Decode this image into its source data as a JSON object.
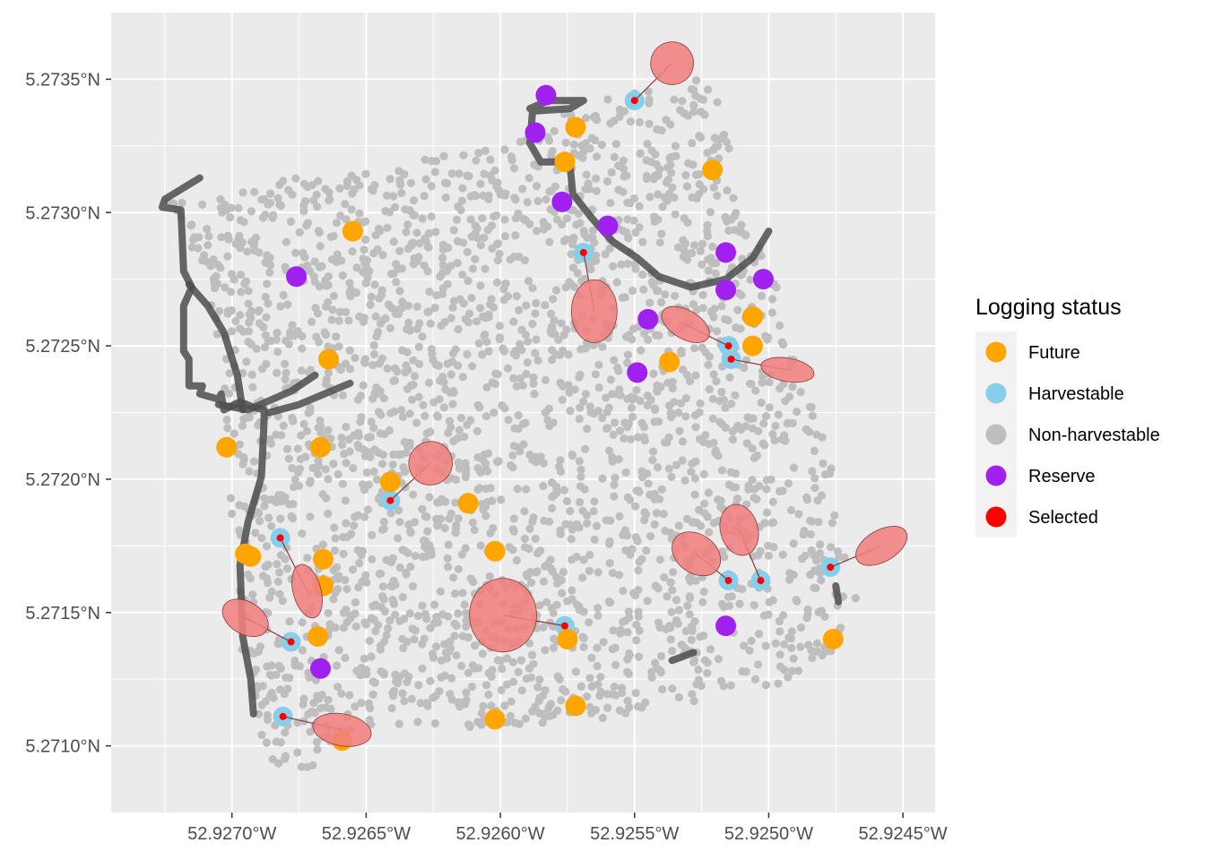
{
  "chart_data": {
    "type": "scatter",
    "title": "",
    "xlabel": "",
    "ylabel": "",
    "x_axis": {
      "range": [
        -52.92745,
        -52.92438
      ],
      "ticks": [
        -52.927,
        -52.9265,
        -52.926,
        -52.9255,
        -52.925,
        -52.9245
      ],
      "tick_labels": [
        "52.9270°W",
        "52.9265°W",
        "52.9260°W",
        "52.9255°W",
        "52.9250°W",
        "52.9245°W"
      ]
    },
    "y_axis": {
      "range": [
        5.27075,
        5.27375
      ],
      "ticks": [
        5.271,
        5.2715,
        5.272,
        5.2725,
        5.273,
        5.2735
      ],
      "tick_labels": [
        "5.2710°N",
        "5.2715°N",
        "5.2720°N",
        "5.2725°N",
        "5.2730°N",
        "5.2735°N"
      ]
    },
    "grid": true,
    "legend": {
      "title": "Logging status",
      "placement": "right",
      "entries": [
        {
          "label": "Future",
          "color": "#FFA500"
        },
        {
          "label": "Harvestable",
          "color": "#87CEEB"
        },
        {
          "label": "Non-harvestable",
          "color": "#BEBEBE"
        },
        {
          "label": "Reserve",
          "color": "#A020F0"
        },
        {
          "label": "Selected",
          "color": "#FF0000"
        }
      ]
    },
    "colors": {
      "panel": "#EBEBEB",
      "grid": "#FFFFFF",
      "road": "#4D4D4D",
      "felling_zone": "#F08080",
      "felling_zone_edge": "#8B3A3A"
    },
    "non_harvestable_region": [
      [
        -52.92725,
        5.27306
      ],
      [
        -52.92596,
        5.27325
      ],
      [
        -52.92575,
        5.27338
      ],
      [
        -52.92528,
        5.27352
      ],
      [
        -52.92517,
        5.2734
      ],
      [
        -52.92512,
        5.27306
      ],
      [
        -52.92497,
        5.27272
      ],
      [
        -52.92495,
        5.27252
      ],
      [
        -52.92483,
        5.27231
      ],
      [
        -52.92477,
        5.2721
      ],
      [
        -52.92475,
        5.27186
      ],
      [
        -52.92469,
        5.27168
      ],
      [
        -52.92466,
        5.27154
      ],
      [
        -52.92478,
        5.27133
      ],
      [
        -52.92497,
        5.27123
      ],
      [
        -52.92535,
        5.27115
      ],
      [
        -52.92575,
        5.27108
      ],
      [
        -52.92613,
        5.27106
      ],
      [
        -52.92652,
        5.27103
      ],
      [
        -52.92666,
        5.27091
      ],
      [
        -52.92685,
        5.27092
      ],
      [
        -52.92697,
        5.27125
      ],
      [
        -52.92698,
        5.27162
      ],
      [
        -52.92702,
        5.27205
      ],
      [
        -52.92703,
        5.27243
      ],
      [
        -52.9271,
        5.27275
      ]
    ],
    "future": [
      [
        -52.92655,
        5.27293
      ],
      [
        -52.92572,
        5.27332
      ],
      [
        -52.92576,
        5.27319
      ],
      [
        -52.92521,
        5.27316
      ],
      [
        -52.92664,
        5.27245
      ],
      [
        -52.92702,
        5.27212
      ],
      [
        -52.92667,
        5.27212
      ],
      [
        -52.92641,
        5.27199
      ],
      [
        -52.92612,
        5.27191
      ],
      [
        -52.92602,
        5.27173
      ],
      [
        -52.92693,
        5.27171
      ],
      [
        -52.92666,
        5.2717
      ],
      [
        -52.92666,
        5.2716
      ],
      [
        -52.92668,
        5.27141
      ],
      [
        -52.92659,
        5.27102
      ],
      [
        -52.92575,
        5.2714
      ],
      [
        -52.92602,
        5.2711
      ],
      [
        -52.92572,
        5.27115
      ],
      [
        -52.92506,
        5.27261
      ],
      [
        -52.92506,
        5.2725
      ],
      [
        -52.92537,
        5.27244
      ],
      [
        -52.92476,
        5.2714
      ],
      [
        -52.92695,
        5.27172
      ]
    ],
    "reserve": [
      [
        -52.92676,
        5.27276
      ],
      [
        -52.92583,
        5.27344
      ],
      [
        -52.92587,
        5.2733
      ],
      [
        -52.92577,
        5.27304
      ],
      [
        -52.9256,
        5.27295
      ],
      [
        -52.92516,
        5.27285
      ],
      [
        -52.92516,
        5.27271
      ],
      [
        -52.92502,
        5.27275
      ],
      [
        -52.92545,
        5.2726
      ],
      [
        -52.92549,
        5.2724
      ],
      [
        -52.92516,
        5.27145
      ],
      [
        -52.92667,
        5.27129
      ]
    ],
    "selected": [
      [
        -52.9255,
        5.27342
      ],
      [
        -52.92569,
        5.27285
      ],
      [
        -52.92515,
        5.2725
      ],
      [
        -52.92514,
        5.27245
      ],
      [
        -52.92641,
        5.27192
      ],
      [
        -52.92682,
        5.27178
      ],
      [
        -52.92678,
        5.27139
      ],
      [
        -52.92681,
        5.27111
      ],
      [
        -52.92576,
        5.27145
      ],
      [
        -52.92515,
        5.27162
      ],
      [
        -52.92503,
        5.27162
      ],
      [
        -52.92477,
        5.27167
      ]
    ],
    "felling_zones": [
      {
        "tree": 0,
        "cx": -52.92536,
        "cy": 5.27356,
        "rx": 8e-05,
        "ry": 8e-05,
        "angle": -30
      },
      {
        "tree": 1,
        "cx": -52.92565,
        "cy": 5.27263,
        "rx": 8.5e-05,
        "ry": 0.000118,
        "angle": 0
      },
      {
        "tree": 2,
        "cx": -52.92531,
        "cy": 5.27258,
        "rx": 9.8e-05,
        "ry": 5.4e-05,
        "angle": 30
      },
      {
        "tree": 3,
        "cx": -52.92493,
        "cy": 5.27241,
        "rx": 0.0001,
        "ry": 4.4e-05,
        "angle": 10
      },
      {
        "tree": 4,
        "cx": -52.92626,
        "cy": 5.27206,
        "rx": 8.2e-05,
        "ry": 8.1e-05,
        "angle": -45
      },
      {
        "tree": 5,
        "cx": -52.92672,
        "cy": 5.27158,
        "rx": 5.2e-05,
        "ry": 0.000103,
        "angle": -15
      },
      {
        "tree": 6,
        "cx": -52.92695,
        "cy": 5.27148,
        "rx": 9.2e-05,
        "ry": 6.1e-05,
        "angle": 30
      },
      {
        "tree": 7,
        "cx": -52.92659,
        "cy": 5.27106,
        "rx": 0.00011,
        "ry": 6e-05,
        "angle": 10
      },
      {
        "tree": 8,
        "cx": -52.92599,
        "cy": 5.27149,
        "rx": 0.000125,
        "ry": 0.000138,
        "angle": 0
      },
      {
        "tree": 9,
        "cx": -52.92527,
        "cy": 5.27172,
        "rx": 9.8e-05,
        "ry": 7.3e-05,
        "angle": 35
      },
      {
        "tree": 10,
        "cx": -52.92511,
        "cy": 5.27181,
        "rx": 7e-05,
        "ry": 9.7e-05,
        "angle": -15
      },
      {
        "tree": 11,
        "cx": -52.92458,
        "cy": 5.27175,
        "rx": 0.000105,
        "ry": 5.9e-05,
        "angle": -30
      }
    ],
    "roads": [
      [
        [
          -52.92712,
          5.27313
        ],
        [
          -52.92725,
          5.27305
        ],
        [
          -52.92726,
          5.27302
        ],
        [
          -52.92719,
          5.27301
        ],
        [
          -52.92718,
          5.27278
        ],
        [
          -52.92715,
          5.27272
        ],
        [
          -52.92718,
          5.27265
        ],
        [
          -52.92718,
          5.27248
        ],
        [
          -52.92716,
          5.27245
        ],
        [
          -52.92716,
          5.27235
        ],
        [
          -52.92711,
          5.27235
        ],
        [
          -52.92712,
          5.27232
        ],
        [
          -52.92705,
          5.2723
        ],
        [
          -52.92704,
          5.27232
        ],
        [
          -52.92703,
          5.27226
        ],
        [
          -52.92697,
          5.27229
        ],
        [
          -52.92692,
          5.27227
        ],
        [
          -52.92688,
          5.27226
        ],
        [
          -52.92688,
          5.27222
        ],
        [
          -52.92689,
          5.27201
        ],
        [
          -52.92694,
          5.27184
        ],
        [
          -52.92697,
          5.27168
        ],
        [
          -52.92696,
          5.27141
        ],
        [
          -52.92693,
          5.27125
        ],
        [
          -52.92692,
          5.27112
        ]
      ],
      [
        [
          -52.92716,
          5.27273
        ],
        [
          -52.92709,
          5.27265
        ],
        [
          -52.92703,
          5.27255
        ],
        [
          -52.92698,
          5.27239
        ],
        [
          -52.92696,
          5.27226
        ]
      ],
      [
        [
          -52.92705,
          5.27228
        ],
        [
          -52.92694,
          5.27226
        ],
        [
          -52.92678,
          5.27233
        ],
        [
          -52.92669,
          5.27239
        ]
      ],
      [
        [
          -52.92686,
          5.27225
        ],
        [
          -52.92675,
          5.27228
        ],
        [
          -52.92656,
          5.27236
        ]
      ],
      [
        [
          -52.92589,
          5.27339
        ],
        [
          -52.92582,
          5.27342
        ],
        [
          -52.92569,
          5.27342
        ],
        [
          -52.92574,
          5.27339
        ],
        [
          -52.92588,
          5.27338
        ],
        [
          -52.92589,
          5.27326
        ],
        [
          -52.92585,
          5.27319
        ],
        [
          -52.92579,
          5.27319
        ],
        [
          -52.92574,
          5.27317
        ],
        [
          -52.92573,
          5.27307
        ],
        [
          -52.92566,
          5.27298
        ],
        [
          -52.92558,
          5.27289
        ],
        [
          -52.92549,
          5.27283
        ],
        [
          -52.92541,
          5.27276
        ],
        [
          -52.92529,
          5.27272
        ],
        [
          -52.92516,
          5.27275
        ],
        [
          -52.92506,
          5.27283
        ],
        [
          -52.925,
          5.27293
        ]
      ],
      [
        [
          -52.92536,
          5.27132
        ],
        [
          -52.92528,
          5.27135
        ]
      ],
      [
        [
          -52.92475,
          5.2716
        ],
        [
          -52.92474,
          5.27154
        ]
      ]
    ]
  }
}
